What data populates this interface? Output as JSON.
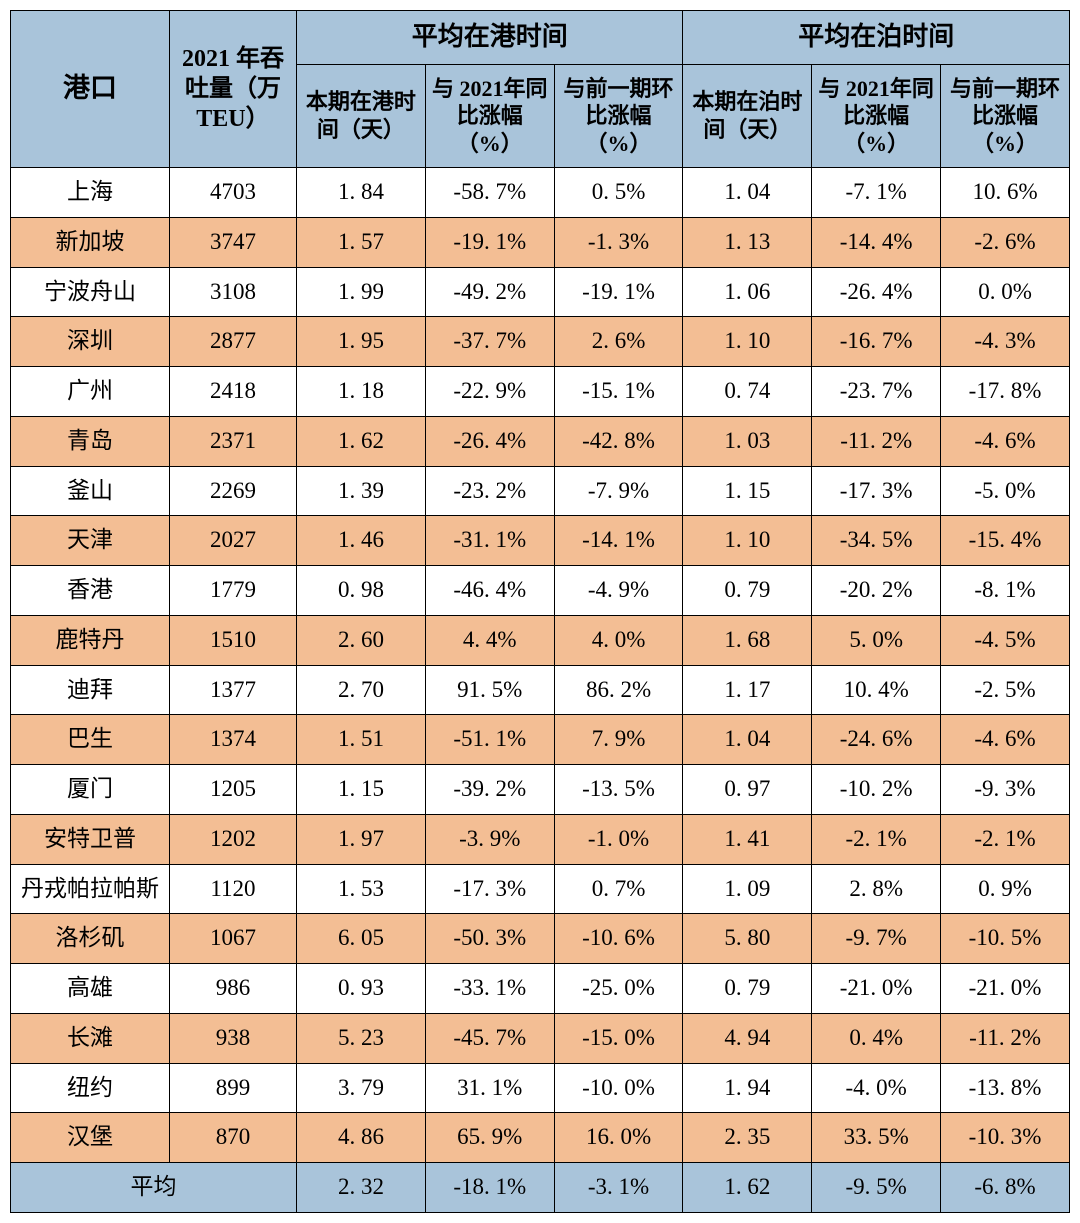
{
  "colors": {
    "header_bg": "#a9c4da",
    "row_odd_bg": "#ffffff",
    "row_even_bg": "#f3be94",
    "border": "#000000"
  },
  "headers": {
    "port": "港口",
    "throughput": "2021 年吞吐量（万TEU）",
    "group_port_time": "平均在港时间",
    "group_berth_time": "平均在泊时间",
    "sub_port_days": "本期在港时间（天）",
    "sub_port_yoy": "与 2021年同比涨幅（%）",
    "sub_port_mom": "与前一期环比涨幅（%）",
    "sub_berth_days": "本期在泊时间（天）",
    "sub_berth_yoy": "与 2021年同比涨幅（%）",
    "sub_berth_mom": "与前一期环比涨幅（%）"
  },
  "rows": [
    {
      "port": "上海",
      "throughput": "4703",
      "port_days": "1. 84",
      "port_yoy": "-58. 7%",
      "port_mom": "0. 5%",
      "berth_days": "1. 04",
      "berth_yoy": "-7. 1%",
      "berth_mom": "10. 6%"
    },
    {
      "port": "新加坡",
      "throughput": "3747",
      "port_days": "1. 57",
      "port_yoy": "-19. 1%",
      "port_mom": "-1. 3%",
      "berth_days": "1. 13",
      "berth_yoy": "-14. 4%",
      "berth_mom": "-2. 6%"
    },
    {
      "port": "宁波舟山",
      "throughput": "3108",
      "port_days": "1. 99",
      "port_yoy": "-49. 2%",
      "port_mom": "-19. 1%",
      "berth_days": "1. 06",
      "berth_yoy": "-26. 4%",
      "berth_mom": "0. 0%"
    },
    {
      "port": "深圳",
      "throughput": "2877",
      "port_days": "1. 95",
      "port_yoy": "-37. 7%",
      "port_mom": "2. 6%",
      "berth_days": "1. 10",
      "berth_yoy": "-16. 7%",
      "berth_mom": "-4. 3%"
    },
    {
      "port": "广州",
      "throughput": "2418",
      "port_days": "1. 18",
      "port_yoy": "-22. 9%",
      "port_mom": "-15. 1%",
      "berth_days": "0. 74",
      "berth_yoy": "-23. 7%",
      "berth_mom": "-17. 8%"
    },
    {
      "port": "青岛",
      "throughput": "2371",
      "port_days": "1. 62",
      "port_yoy": "-26. 4%",
      "port_mom": "-42. 8%",
      "berth_days": "1. 03",
      "berth_yoy": "-11. 2%",
      "berth_mom": "-4. 6%"
    },
    {
      "port": "釜山",
      "throughput": "2269",
      "port_days": "1. 39",
      "port_yoy": "-23. 2%",
      "port_mom": "-7. 9%",
      "berth_days": "1. 15",
      "berth_yoy": "-17. 3%",
      "berth_mom": "-5. 0%"
    },
    {
      "port": "天津",
      "throughput": "2027",
      "port_days": "1. 46",
      "port_yoy": "-31. 1%",
      "port_mom": "-14. 1%",
      "berth_days": "1. 10",
      "berth_yoy": "-34. 5%",
      "berth_mom": "-15. 4%"
    },
    {
      "port": "香港",
      "throughput": "1779",
      "port_days": "0. 98",
      "port_yoy": "-46. 4%",
      "port_mom": "-4. 9%",
      "berth_days": "0. 79",
      "berth_yoy": "-20. 2%",
      "berth_mom": "-8. 1%"
    },
    {
      "port": "鹿特丹",
      "throughput": "1510",
      "port_days": "2. 60",
      "port_yoy": "4. 4%",
      "port_mom": "4. 0%",
      "berth_days": "1. 68",
      "berth_yoy": "5. 0%",
      "berth_mom": "-4. 5%"
    },
    {
      "port": "迪拜",
      "throughput": "1377",
      "port_days": "2. 70",
      "port_yoy": "91. 5%",
      "port_mom": "86. 2%",
      "berth_days": "1. 17",
      "berth_yoy": "10. 4%",
      "berth_mom": "-2. 5%"
    },
    {
      "port": "巴生",
      "throughput": "1374",
      "port_days": "1. 51",
      "port_yoy": "-51. 1%",
      "port_mom": "7. 9%",
      "berth_days": "1. 04",
      "berth_yoy": "-24. 6%",
      "berth_mom": "-4. 6%"
    },
    {
      "port": "厦门",
      "throughput": "1205",
      "port_days": "1. 15",
      "port_yoy": "-39. 2%",
      "port_mom": "-13. 5%",
      "berth_days": "0. 97",
      "berth_yoy": "-10. 2%",
      "berth_mom": "-9. 3%"
    },
    {
      "port": "安特卫普",
      "throughput": "1202",
      "port_days": "1. 97",
      "port_yoy": "-3. 9%",
      "port_mom": "-1. 0%",
      "berth_days": "1. 41",
      "berth_yoy": "-2. 1%",
      "berth_mom": "-2. 1%"
    },
    {
      "port": "丹戎帕拉帕斯",
      "throughput": "1120",
      "port_days": "1. 53",
      "port_yoy": "-17. 3%",
      "port_mom": "0. 7%",
      "berth_days": "1. 09",
      "berth_yoy": "2. 8%",
      "berth_mom": "0. 9%"
    },
    {
      "port": "洛杉矶",
      "throughput": "1067",
      "port_days": "6. 05",
      "port_yoy": "-50. 3%",
      "port_mom": "-10. 6%",
      "berth_days": "5. 80",
      "berth_yoy": "-9. 7%",
      "berth_mom": "-10. 5%"
    },
    {
      "port": "高雄",
      "throughput": "986",
      "port_days": "0. 93",
      "port_yoy": "-33. 1%",
      "port_mom": "-25. 0%",
      "berth_days": "0. 79",
      "berth_yoy": "-21. 0%",
      "berth_mom": "-21. 0%"
    },
    {
      "port": "长滩",
      "throughput": "938",
      "port_days": "5. 23",
      "port_yoy": "-45. 7%",
      "port_mom": "-15. 0%",
      "berth_days": "4. 94",
      "berth_yoy": "0. 4%",
      "berth_mom": "-11. 2%"
    },
    {
      "port": "纽约",
      "throughput": "899",
      "port_days": "3. 79",
      "port_yoy": "31. 1%",
      "port_mom": "-10. 0%",
      "berth_days": "1. 94",
      "berth_yoy": "-4. 0%",
      "berth_mom": "-13. 8%"
    },
    {
      "port": "汉堡",
      "throughput": "870",
      "port_days": "4. 86",
      "port_yoy": "65. 9%",
      "port_mom": "16. 0%",
      "berth_days": "2. 35",
      "berth_yoy": "33. 5%",
      "berth_mom": "-10. 3%"
    }
  ],
  "average": {
    "label": "平均",
    "port_days": "2. 32",
    "port_yoy": "-18. 1%",
    "port_mom": "-3. 1%",
    "berth_days": "1. 62",
    "berth_yoy": "-9. 5%",
    "berth_mom": "-6. 8%"
  }
}
